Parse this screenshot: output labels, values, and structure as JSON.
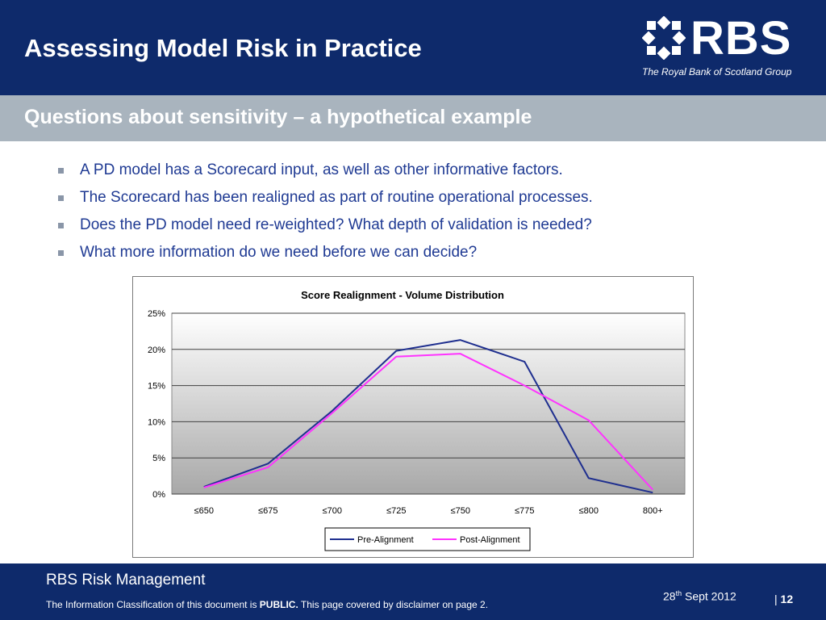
{
  "header": {
    "title": "Assessing Model Risk in Practice",
    "logo_text": "RBS",
    "logo_subtext": "The Royal Bank of Scotland Group"
  },
  "subheader": {
    "title": "Questions about sensitivity – a hypothetical example"
  },
  "bullets": [
    "A PD model has a Scorecard input, as well as other informative factors.",
    "The Scorecard has been realigned as part of routine operational processes.",
    "Does the PD model need re-weighted? What depth of validation is needed?",
    "What more information do we need before we can decide?"
  ],
  "chart_data": {
    "type": "line",
    "title": "Score Realignment - Volume Distribution",
    "categories": [
      "≤650",
      "≤675",
      "≤700",
      "≤725",
      "≤750",
      "≤775",
      "≤800",
      "800+"
    ],
    "series": [
      {
        "name": "Pre-Alignment",
        "color": "#1f2f8f",
        "values": [
          1.0,
          4.2,
          11.5,
          19.8,
          21.3,
          18.3,
          2.2,
          0.2
        ]
      },
      {
        "name": "Post-Alignment",
        "color": "#ff33ff",
        "values": [
          0.9,
          3.7,
          11.2,
          19.0,
          19.4,
          15.0,
          10.2,
          0.6
        ]
      }
    ],
    "yticks": [
      "0%",
      "5%",
      "10%",
      "15%",
      "20%",
      "25%"
    ],
    "ylim": [
      0,
      25
    ],
    "grid": true,
    "legend": "bottom"
  },
  "footer": {
    "title": "RBS Risk Management",
    "note_prefix": "The Information Classification of this document is ",
    "note_bold": "PUBLIC.",
    "note_suffix": " This page covered by disclaimer on page 2.",
    "date_day": "28",
    "date_sup": "th",
    "date_rest": " Sept 2012",
    "page_sep": "| ",
    "page_number": "12"
  },
  "colors": {
    "header_bg": "#0e2a6b",
    "subheader_bg": "#a9b4be",
    "bullet_text": "#1f3a93"
  }
}
